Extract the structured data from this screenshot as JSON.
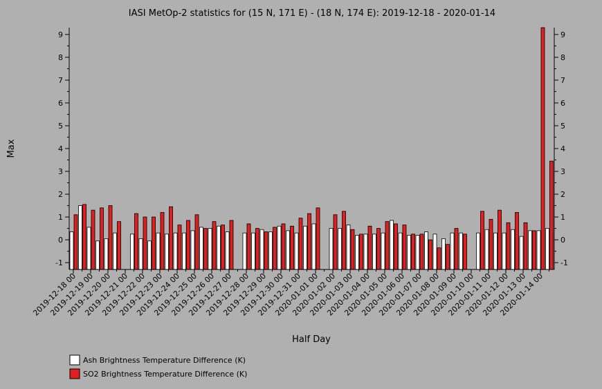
{
  "chart_data": {
    "type": "bar",
    "title": "IASI MetOp-2 statistics for (15 N, 171 E) - (18 N, 174 E): 2019-12-18 - 2020-01-14",
    "xlabel": "Half Day",
    "ylabel": "Max",
    "ylim": [
      -1.3,
      9.3
    ],
    "yticks": [
      -1,
      0,
      1,
      2,
      3,
      4,
      5,
      6,
      7,
      8,
      9
    ],
    "grid": false,
    "legend_position": "bottom-left",
    "colors": {
      "ash": "#ffffff",
      "so2": "#e02020",
      "background": "#b0b0b0"
    },
    "x_tick_labels": [
      "2019-12-18 00",
      "2019-12-19 00",
      "2019-12-20 00",
      "2019-12-21 00",
      "2019-12-22 00",
      "2019-12-23 00",
      "2019-12-24 00",
      "2019-12-25 00",
      "2019-12-26 00",
      "2019-12-27 00",
      "2019-12-28 00",
      "2019-12-29 00",
      "2019-12-30 00",
      "2019-12-31 00",
      "2020-01-01 00",
      "2020-01-02 00",
      "2020-01-03 00",
      "2020-01-04 00",
      "2020-01-05 00",
      "2020-01-06 00",
      "2020-01-07 00",
      "2020-01-08 00",
      "2020-01-09 00",
      "2020-01-10 00",
      "2020-01-11 00",
      "2020-01-12 00",
      "2020-01-13 00",
      "2020-01-14 00"
    ],
    "series": [
      {
        "name": "Ash Brightness Temperature Difference (K)",
        "values": [
          0.35,
          1.5,
          0.55,
          -0.05,
          0.05,
          0.3,
          null,
          0.25,
          0.05,
          -0.05,
          0.3,
          0.25,
          0.3,
          0.3,
          0.4,
          0.55,
          0.5,
          0.6,
          0.35,
          null,
          0.3,
          0.3,
          0.45,
          0.35,
          0.6,
          0.4,
          0.3,
          0.6,
          0.7,
          null,
          0.5,
          0.5,
          0.65,
          0.2,
          0.25,
          0.25,
          0.3,
          0.85,
          0.3,
          0.2,
          0.2,
          0.35,
          0.25,
          0.05,
          0.3,
          0.3,
          null,
          0.3,
          0.45,
          0.3,
          0.3,
          0.45,
          0.15,
          0.4,
          0.4,
          0.5
        ]
      },
      {
        "name": "SO2 Brightness Temperature Difference (K)",
        "values": [
          1.1,
          1.55,
          1.3,
          1.4,
          1.5,
          0.8,
          null,
          1.15,
          1.0,
          1.0,
          1.2,
          1.45,
          0.65,
          0.85,
          1.1,
          0.5,
          0.8,
          0.65,
          0.85,
          null,
          0.7,
          0.5,
          0.35,
          0.55,
          0.7,
          0.6,
          0.95,
          1.15,
          1.4,
          null,
          1.1,
          1.25,
          0.45,
          0.25,
          0.6,
          0.5,
          0.8,
          0.7,
          0.65,
          0.25,
          0.25,
          0.0,
          -0.35,
          -0.2,
          0.5,
          0.25,
          null,
          1.25,
          0.9,
          1.3,
          0.75,
          1.2,
          0.75,
          0.4,
          9.3,
          3.45
        ]
      }
    ]
  }
}
